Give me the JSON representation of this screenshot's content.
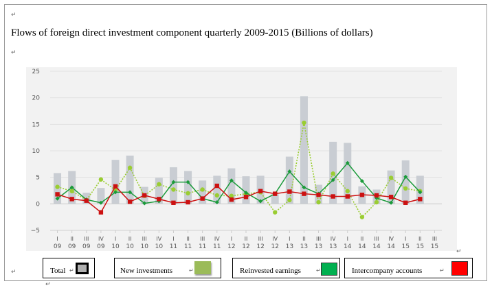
{
  "page": {
    "title": "Flows of foreign direct investment component quarterly 2009-2015 (Billions of dollars)",
    "para_mark": "↵"
  },
  "chart_data": {
    "type": "bar",
    "title": "Flows of foreign direct investment component quarterly 2009-2015 (Billions of dollars)",
    "xlabel": "",
    "ylabel": "",
    "ylim": [
      -5,
      25
    ],
    "yticks": [
      -5,
      0,
      5,
      10,
      15,
      20,
      25
    ],
    "grid": true,
    "categories": [
      {
        "q": "I",
        "y": "09"
      },
      {
        "q": "II",
        "y": "09"
      },
      {
        "q": "III",
        "y": "09"
      },
      {
        "q": "IV",
        "y": "09"
      },
      {
        "q": "I",
        "y": "10"
      },
      {
        "q": "II",
        "y": "10"
      },
      {
        "q": "III",
        "y": "10"
      },
      {
        "q": "IV",
        "y": "10"
      },
      {
        "q": "I",
        "y": "11"
      },
      {
        "q": "II",
        "y": "11"
      },
      {
        "q": "III",
        "y": "11"
      },
      {
        "q": "IV",
        "y": "11"
      },
      {
        "q": "I",
        "y": "12"
      },
      {
        "q": "II",
        "y": "12"
      },
      {
        "q": "III",
        "y": "12"
      },
      {
        "q": "IV",
        "y": "12"
      },
      {
        "q": "I",
        "y": "13"
      },
      {
        "q": "II",
        "y": "13"
      },
      {
        "q": "III",
        "y": "13"
      },
      {
        "q": "IV",
        "y": "13"
      },
      {
        "q": "I",
        "y": "14"
      },
      {
        "q": "II",
        "y": "14"
      },
      {
        "q": "III",
        "y": "14"
      },
      {
        "q": "IV",
        "y": "14"
      },
      {
        "q": "I",
        "y": "15"
      },
      {
        "q": "II",
        "y": "15"
      },
      {
        "q": "III",
        "y": "15"
      }
    ],
    "series": [
      {
        "name": "Total",
        "kind": "bar",
        "color": "#c9cdd3",
        "values": [
          5.8,
          6.2,
          2.1,
          3.0,
          8.3,
          9.1,
          3.2,
          4.9,
          6.9,
          6.2,
          4.4,
          5.3,
          6.7,
          5.2,
          5.3,
          1.8,
          8.9,
          20.3,
          3.6,
          11.7,
          11.5,
          3.3,
          2.7,
          6.3,
          8.2,
          5.3,
          null
        ]
      },
      {
        "name": "New investments",
        "kind": "dotted-line",
        "color": "#9acd32",
        "values": [
          3.2,
          2.4,
          0.7,
          4.6,
          2.6,
          6.8,
          1.5,
          3.7,
          2.7,
          2.0,
          2.7,
          1.6,
          1.5,
          1.9,
          2.2,
          -1.6,
          0.7,
          15.3,
          0.3,
          5.7,
          2.4,
          -2.5,
          0.3,
          4.9,
          2.9,
          2.4,
          null
        ]
      },
      {
        "name": "Reinvested earnings",
        "kind": "line",
        "color": "#1a9a3a",
        "values": [
          1.0,
          3.1,
          0.8,
          0.2,
          2.2,
          2.2,
          0.1,
          0.5,
          4.1,
          4.1,
          1.0,
          0.3,
          4.4,
          2.1,
          0.5,
          1.9,
          6.1,
          3.1,
          1.9,
          4.5,
          7.7,
          4.3,
          1.1,
          0.2,
          5.1,
          2.2,
          null
        ]
      },
      {
        "name": "Intercompany accounts",
        "kind": "line",
        "color": "#cc1111",
        "values": [
          1.8,
          0.9,
          0.6,
          -1.6,
          3.3,
          0.4,
          1.6,
          0.9,
          0.2,
          0.3,
          1.0,
          3.4,
          0.8,
          1.3,
          2.4,
          1.9,
          2.3,
          1.9,
          1.7,
          1.4,
          1.4,
          1.7,
          1.6,
          1.3,
          0.2,
          0.9,
          null
        ]
      }
    ],
    "legend": {
      "placement": "bottom",
      "items": [
        {
          "label": "Total",
          "color": "#b0b0b0",
          "border": "#000000"
        },
        {
          "label": "New investments",
          "color": "#9bbb59",
          "border": "#ffffff"
        },
        {
          "label": "Reinvested earnings",
          "color": "#00b050",
          "border": "#333333"
        },
        {
          "label": "Intercompany accounts",
          "color": "#ff0000",
          "border": "#333333"
        }
      ]
    }
  }
}
